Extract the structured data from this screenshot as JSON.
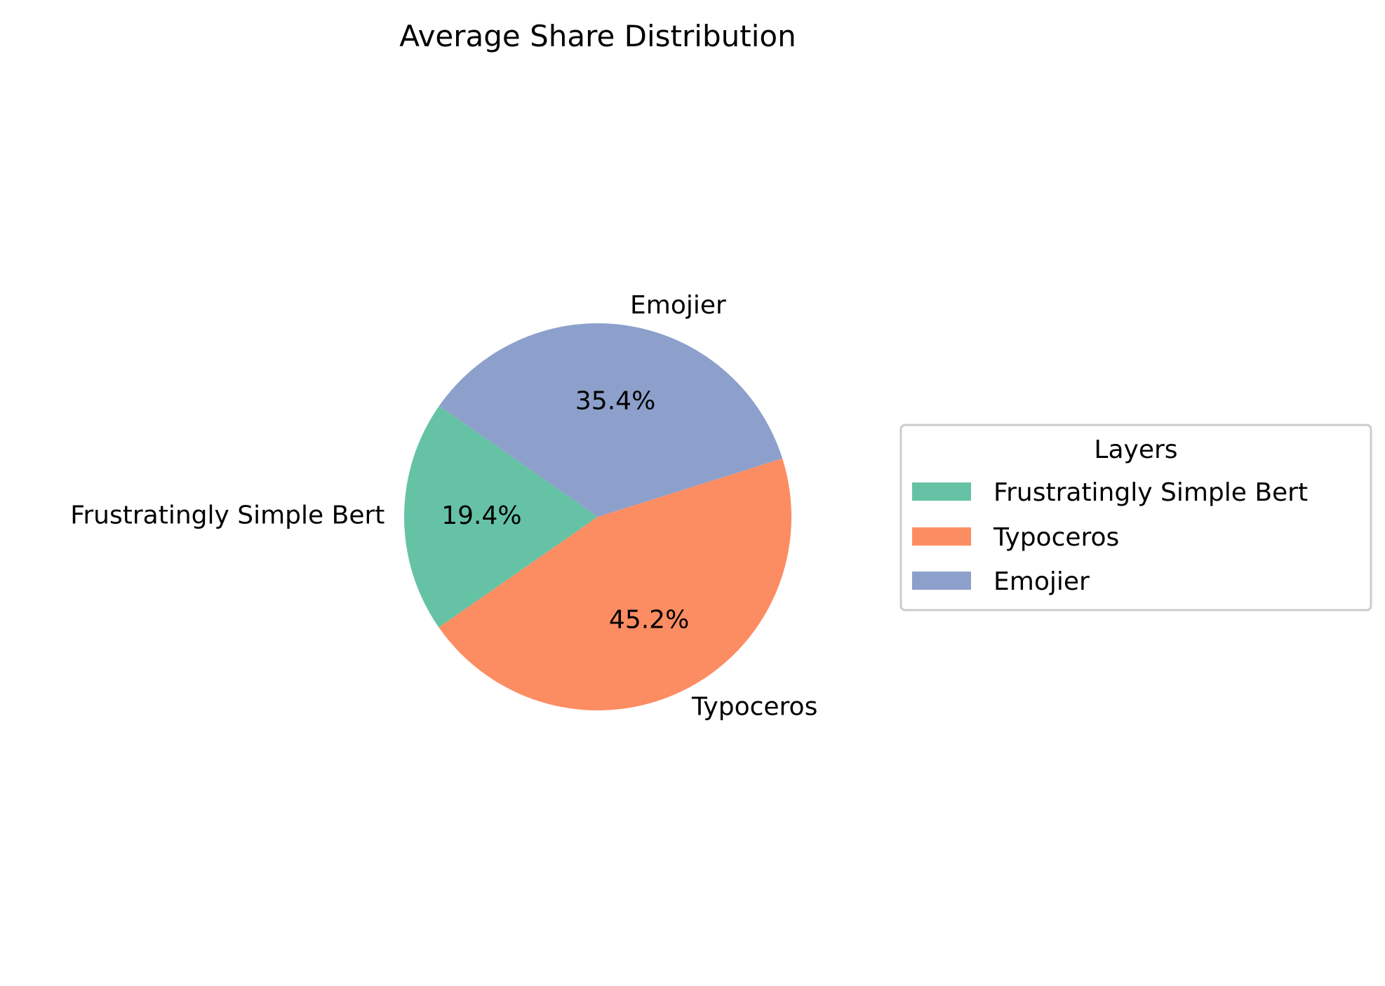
{
  "chart_data": {
    "type": "pie",
    "title": "Average Share Distribution",
    "categories": [
      "Frustratingly Simple Bert",
      "Typoceros",
      "Emojier"
    ],
    "values": [
      19.4,
      45.2,
      35.4
    ],
    "value_labels": [
      "19.4%",
      "45.2%",
      "35.4%"
    ],
    "colors": [
      "#66c2a5",
      "#fc8d62",
      "#8da0cb"
    ],
    "start_angle_deg": 145,
    "legend": {
      "title": "Layers",
      "placement": "right",
      "entries": [
        "Frustratingly Simple Bert",
        "Typoceros",
        "Emojier"
      ]
    }
  }
}
